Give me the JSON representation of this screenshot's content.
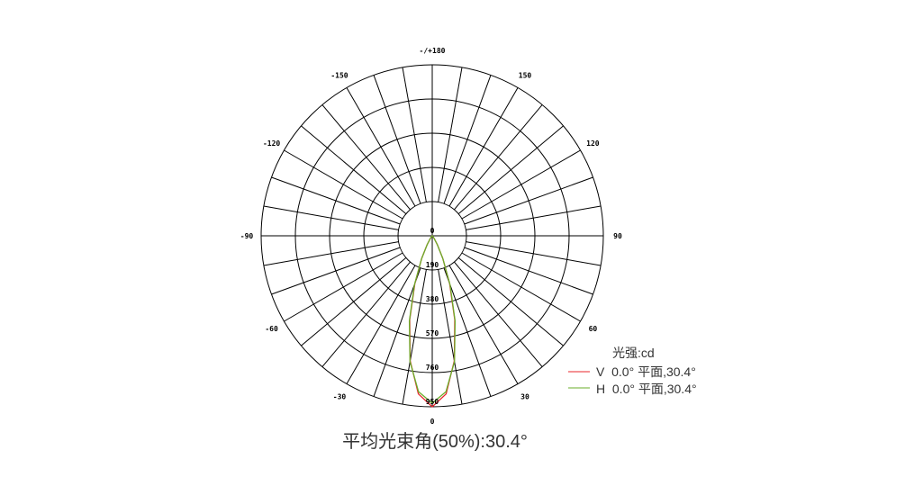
{
  "chart_data": {
    "type": "polar",
    "unit_label": "光强:cd",
    "radial_ticks": [
      "0",
      "190",
      "380",
      "570",
      "760",
      "950"
    ],
    "radial_values": [
      0,
      190,
      380,
      570,
      760,
      950
    ],
    "rlim": [
      0,
      950
    ],
    "angle_ticks": [
      {
        "angle": 0,
        "label": "0"
      },
      {
        "angle": 30,
        "label": "30"
      },
      {
        "angle": 60,
        "label": "60"
      },
      {
        "angle": 90,
        "label": "90"
      },
      {
        "angle": 120,
        "label": "120"
      },
      {
        "angle": 150,
        "label": "150"
      },
      {
        "angle": 180,
        "label": "-/+180"
      },
      {
        "angle": -150,
        "label": "-150"
      },
      {
        "angle": -120,
        "label": "-120"
      },
      {
        "angle": -90,
        "label": "-90"
      },
      {
        "angle": -60,
        "label": "-60"
      },
      {
        "angle": -30,
        "label": "-30"
      }
    ],
    "spoke_step_deg": 10,
    "angles_deg": [
      -45,
      -40,
      -35,
      -30,
      -25,
      -20,
      -15,
      -10,
      -5,
      0,
      5,
      10,
      15,
      20,
      25,
      30,
      35,
      40,
      45
    ],
    "series": [
      {
        "name": "V  0.0° 平面,30.4°",
        "color": "#e8262b",
        "values": [
          1,
          5,
          19,
          57,
          140,
          282,
          483,
          705,
          882,
          950,
          882,
          705,
          483,
          282,
          140,
          57,
          19,
          5,
          1
        ]
      },
      {
        "name": "H  0.0° 平面,30.4°",
        "color": "#6aae2a",
        "values": [
          1,
          5,
          18,
          55,
          140,
          290,
          490,
          710,
          870,
          930,
          870,
          710,
          490,
          290,
          140,
          55,
          18,
          5,
          1
        ]
      }
    ],
    "legend_position": "bottom-right",
    "footer": "平均光束角(50%):30.4°"
  }
}
